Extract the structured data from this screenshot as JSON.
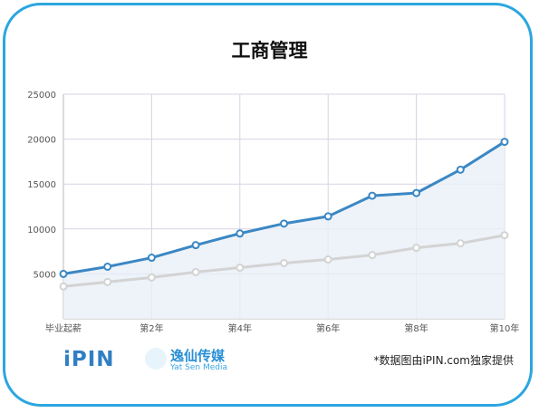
{
  "title": "工商管理",
  "chart_data": {
    "type": "area",
    "categories": [
      "毕业起薪",
      "",
      "第2年",
      "",
      "第4年",
      "",
      "第6年",
      "",
      "第8年",
      "",
      "第10年"
    ],
    "ylim": [
      0,
      25000
    ],
    "yticks": [
      5000,
      10000,
      15000,
      20000,
      25000
    ],
    "grid": true,
    "series": [
      {
        "values": [
          5000,
          5800,
          6800,
          8200,
          9500,
          10600,
          11400,
          13700,
          14000,
          16600,
          19700
        ],
        "color": "#3b87c4"
      },
      {
        "values": [
          3600,
          4100,
          4600,
          5200,
          5700,
          6200,
          6600,
          7100,
          7900,
          8400,
          9300
        ],
        "color": "#d3d3d3"
      }
    ]
  },
  "logos": {
    "ipin": "iPIN",
    "media_name": "逸仙传媒",
    "media_sub": "Yat Sen Media"
  },
  "source_note": "*数据图由iPIN.com独家提供",
  "colors": {
    "border": "#2ba6df",
    "line_main": "#3b87c4",
    "line_secondary": "#d3d3d3",
    "area_fill": "#e9f0f8",
    "grid": "#d9d2e4"
  }
}
